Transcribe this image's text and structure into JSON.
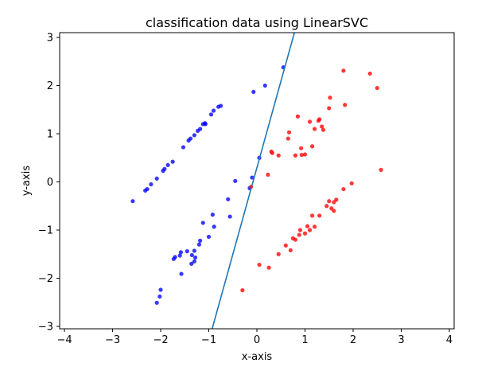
{
  "chart_data": {
    "type": "scatter",
    "title": "classification data using LinearSVC",
    "xlabel": "x-axis",
    "ylabel": "y-axis",
    "xlim": [
      -4.1,
      4.1
    ],
    "ylim": [
      -3.05,
      3.1
    ],
    "x_ticks": [
      -4,
      -3,
      -2,
      -1,
      0,
      1,
      2,
      3,
      4
    ],
    "y_ticks": [
      -3,
      -2,
      -1,
      0,
      1,
      2,
      3
    ],
    "grid": false,
    "colors": {
      "class_0": "#0000ff",
      "class_1": "#ff0000",
      "boundary": "#1f77b4"
    },
    "decision_boundary": {
      "x": [
        -0.93,
        0.78
      ],
      "y": [
        -3.05,
        3.1
      ]
    },
    "series": [
      {
        "class": 0,
        "color": "#0000ff",
        "points": [
          [
            -2.58,
            -0.4
          ],
          [
            -2.32,
            -0.18
          ],
          [
            -2.28,
            -0.15
          ],
          [
            -2.2,
            -0.05
          ],
          [
            -2.08,
            0.07
          ],
          [
            -1.95,
            0.23
          ],
          [
            -1.92,
            0.27
          ],
          [
            -1.85,
            0.35
          ],
          [
            -1.75,
            0.42
          ],
          [
            -1.53,
            0.72
          ],
          [
            -1.42,
            0.86
          ],
          [
            -1.38,
            0.9
          ],
          [
            -1.3,
            0.97
          ],
          [
            -1.23,
            1.06
          ],
          [
            -1.18,
            1.1
          ],
          [
            -1.12,
            1.2
          ],
          [
            -1.08,
            1.22
          ],
          [
            -1.07,
            1.2
          ],
          [
            -0.95,
            1.4
          ],
          [
            -0.9,
            1.48
          ],
          [
            -0.8,
            1.56
          ],
          [
            -0.75,
            1.58
          ],
          [
            -0.07,
            1.87
          ],
          [
            0.17,
            2.0
          ],
          [
            0.55,
            2.38
          ],
          [
            -0.45,
            0.02
          ],
          [
            -0.1,
            0.09
          ],
          [
            -0.15,
            -0.13
          ],
          [
            -0.6,
            -0.36
          ],
          [
            -0.56,
            -0.72
          ],
          [
            -0.92,
            -0.68
          ],
          [
            -1.12,
            -0.85
          ],
          [
            -0.89,
            -0.93
          ],
          [
            -1.0,
            -1.14
          ],
          [
            -1.18,
            -1.22
          ],
          [
            -1.2,
            -1.3
          ],
          [
            -1.3,
            -1.43
          ],
          [
            -1.28,
            -1.57
          ],
          [
            -1.3,
            -1.65
          ],
          [
            -1.36,
            -1.7
          ],
          [
            -1.35,
            -1.52
          ],
          [
            -1.45,
            -1.44
          ],
          [
            -1.58,
            -1.46
          ],
          [
            -1.6,
            -1.53
          ],
          [
            -1.7,
            -1.56
          ],
          [
            -1.73,
            -1.6
          ],
          [
            -1.57,
            -1.91
          ],
          [
            -2.0,
            -2.24
          ],
          [
            -2.02,
            -2.38
          ],
          [
            -2.08,
            -2.51
          ],
          [
            0.05,
            0.5
          ]
        ]
      },
      {
        "class": 1,
        "color": "#ff0000",
        "points": [
          [
            0.32,
            0.6
          ],
          [
            0.3,
            0.63
          ],
          [
            0.45,
            0.55
          ],
          [
            0.65,
            0.9
          ],
          [
            0.67,
            1.03
          ],
          [
            0.85,
            1.36
          ],
          [
            0.8,
            0.55
          ],
          [
            0.92,
            0.7
          ],
          [
            0.93,
            0.56
          ],
          [
            1.0,
            0.57
          ],
          [
            1.1,
            1.25
          ],
          [
            1.15,
            0.74
          ],
          [
            1.2,
            1.1
          ],
          [
            1.28,
            1.27
          ],
          [
            1.3,
            1.3
          ],
          [
            1.35,
            1.15
          ],
          [
            1.38,
            1.08
          ],
          [
            1.5,
            1.53
          ],
          [
            1.52,
            1.75
          ],
          [
            1.8,
            2.31
          ],
          [
            1.83,
            1.6
          ],
          [
            2.35,
            2.25
          ],
          [
            2.5,
            1.95
          ],
          [
            2.58,
            0.25
          ],
          [
            0.23,
            0.15
          ],
          [
            -0.12,
            -0.1
          ],
          [
            1.97,
            -0.03
          ],
          [
            1.8,
            -0.15
          ],
          [
            1.65,
            -0.37
          ],
          [
            1.6,
            -0.42
          ],
          [
            1.5,
            -0.4
          ],
          [
            1.45,
            -0.5
          ],
          [
            1.55,
            -0.55
          ],
          [
            1.6,
            -0.6
          ],
          [
            1.3,
            -0.7
          ],
          [
            1.15,
            -0.7
          ],
          [
            1.2,
            -0.93
          ],
          [
            1.05,
            -0.92
          ],
          [
            1.1,
            -1.0
          ],
          [
            1.0,
            -1.07
          ],
          [
            0.9,
            -1.0
          ],
          [
            0.88,
            -1.1
          ],
          [
            0.8,
            -1.2
          ],
          [
            0.75,
            -1.17
          ],
          [
            0.6,
            -1.32
          ],
          [
            0.7,
            -1.42
          ],
          [
            0.45,
            -1.5
          ],
          [
            0.05,
            -1.72
          ],
          [
            0.25,
            -1.78
          ],
          [
            -0.3,
            -2.25
          ]
        ]
      }
    ]
  }
}
